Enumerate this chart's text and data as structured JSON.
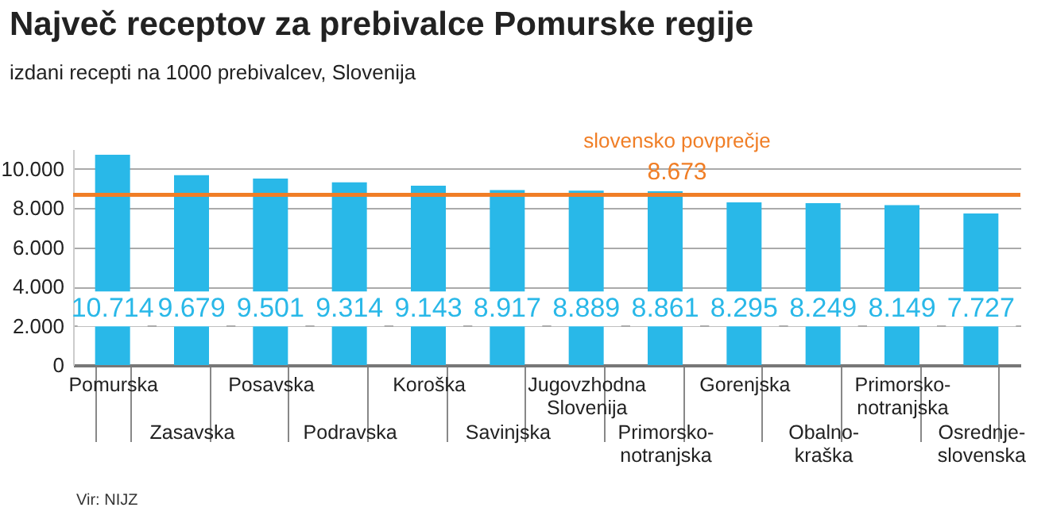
{
  "chart_data": {
    "type": "bar",
    "title": "Največ receptov za prebivalce Pomurske regije",
    "subtitle": "izdani recepti na 1000 prebivalcev, Slovenija",
    "categories": [
      "Pomurska",
      "Zasavska",
      "Posavska",
      "Podravska",
      "Koroška",
      "Savinjska",
      "Jugovzhodna Slovenija",
      "Primorsko-notranjska",
      "Gorenjska",
      "Obalno-kraška",
      "Primorsko-notranjska",
      "Osrednje-slovenska"
    ],
    "values": [
      10714,
      9679,
      9501,
      9314,
      9143,
      8917,
      8889,
      8861,
      8295,
      8249,
      8149,
      7727
    ],
    "color": "#29b8e8",
    "data_labels": true,
    "value_labels": [
      "10.714",
      "9.679",
      "9.501",
      "9.314",
      "9.143",
      "8.917",
      "8.889",
      "8.861",
      "8.295",
      "8.249",
      "8.149",
      "7.727"
    ],
    "ylim": [
      0,
      11000
    ],
    "yticks": [
      0,
      {
        "value": 2000,
        "label": "2.000"
      },
      {
        "value": 4000,
        "label": "4.000"
      },
      {
        "value": 6000,
        "label": "6.000"
      },
      {
        "value": 8000,
        "label": "8.000"
      },
      {
        "value": 10000,
        "label": "10.000"
      }
    ],
    "grid": "y",
    "ref_lines": [
      {
        "axis": "y",
        "value": 8673,
        "label": "slovensko povprečje",
        "color": "#f07e26"
      }
    ],
    "annotations": [
      {
        "text": "8.673",
        "y": 8673
      },
      "Vir: NIJZ"
    ]
  }
}
